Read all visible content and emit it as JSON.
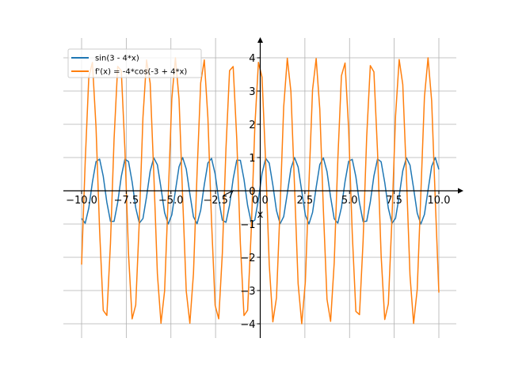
{
  "chart_data": {
    "type": "line",
    "xlabel": "x",
    "ylabel": "",
    "xlim": [
      -10,
      10
    ],
    "ylim": [
      -4.2,
      4.2
    ],
    "grid": true,
    "legend_position": "top-left",
    "x_ticks": [
      -10.0,
      -7.5,
      -5.0,
      -2.5,
      0.0,
      2.5,
      5.0,
      7.5,
      10.0
    ],
    "x_tick_labels": [
      "−10.0",
      "−7.5",
      "−5.0",
      "−2.5",
      "0.0",
      "2.5",
      "5.0",
      "7.5",
      "10.0"
    ],
    "y_ticks": [
      -4,
      -3,
      -2,
      -1,
      0,
      1,
      2,
      3,
      4
    ],
    "y_tick_labels": [
      "−4",
      "−3",
      "−2",
      "−1",
      "0",
      "1",
      "2",
      "3",
      "4"
    ],
    "sample_count": 100,
    "series": [
      {
        "name": "sin(3 - 4*x)",
        "color": "#1f77b4",
        "function": "sin(3 - 4*x)"
      },
      {
        "name": "f'(x) = -4*cos(-3 + 4*x)",
        "color": "#ff7f0e",
        "function": "-4*cos(-3 + 4*x)"
      }
    ]
  }
}
